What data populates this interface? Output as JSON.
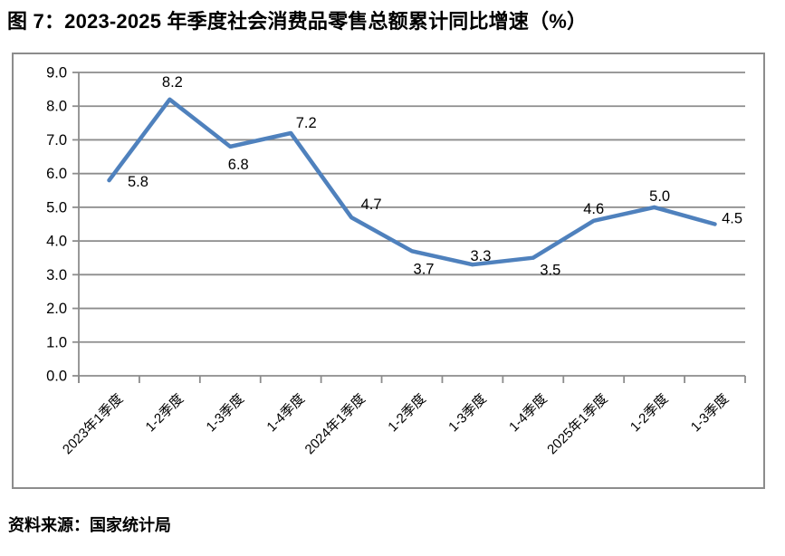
{
  "figure": {
    "title": "图 7：2023-2025 年季度社会消费品零售总额累计同比增速（%）",
    "source": "资料来源：国家统计局"
  },
  "chart_data": {
    "type": "line",
    "title": "2023-2025 年季度社会消费品零售总额累计同比增速（%）",
    "categories": [
      "2023年1季度",
      "1-2季度",
      "1-3季度",
      "1-4季度",
      "2024年1季度",
      "1-2季度",
      "1-3季度",
      "1-4季度",
      "2025年1季度",
      "1-2季度",
      "1-3季度"
    ],
    "values": [
      5.8,
      8.2,
      6.8,
      7.2,
      4.7,
      3.7,
      3.3,
      3.5,
      4.6,
      5.0,
      4.5
    ],
    "data_labels": [
      "5.8",
      "8.2",
      "6.8",
      "7.2",
      "4.7",
      "3.7",
      "3.3",
      "3.5",
      "4.6",
      "5.0",
      "4.5"
    ],
    "xlabel": "",
    "ylabel": "",
    "ylim": [
      0,
      9
    ],
    "ytick_interval": 1,
    "ytick_labels": [
      "0.0",
      "1.0",
      "2.0",
      "3.0",
      "4.0",
      "5.0",
      "6.0",
      "7.0",
      "8.0",
      "9.0"
    ],
    "grid": true,
    "legend": "none",
    "colors": {
      "line": "#4F81BD",
      "grid": "#8c8c8c",
      "axis": "#8c8c8c",
      "text": "#000000",
      "background": "#ffffff"
    }
  }
}
